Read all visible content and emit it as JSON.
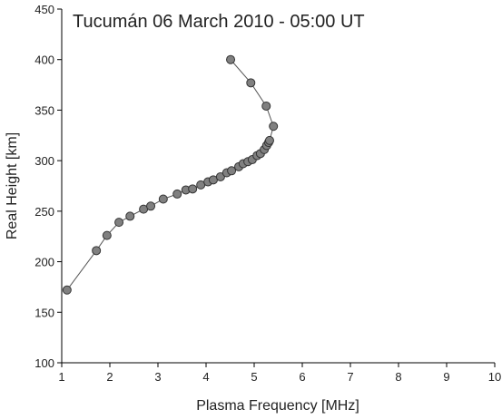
{
  "chart_data": {
    "type": "line",
    "title": "Tucumán 06 March 2010 - 05:00 UT",
    "x_label": "Plasma Frequency [MHz]",
    "y_label": "Real Height [km]",
    "x": [
      1.11,
      1.72,
      1.94,
      2.19,
      2.42,
      2.7,
      2.85,
      3.11,
      3.4,
      3.58,
      3.72,
      3.89,
      4.04,
      4.15,
      4.3,
      4.43,
      4.53,
      4.68,
      4.77,
      4.87,
      4.96,
      5.06,
      5.13,
      5.21,
      5.26,
      5.3,
      5.32,
      5.4,
      5.25,
      4.93,
      4.51
    ],
    "values": [
      172,
      211,
      226,
      239,
      245,
      252,
      255,
      262,
      267,
      271,
      272,
      276,
      279,
      281,
      284,
      288,
      290,
      294,
      297,
      299,
      301,
      305,
      307,
      311,
      315,
      318,
      320,
      334,
      354,
      377,
      400
    ],
    "color": "#808080",
    "line_color": "#555555",
    "markers": true,
    "xlim": [
      1,
      10
    ],
    "xticks": [
      1,
      2,
      3,
      4,
      5,
      6,
      7,
      8,
      9,
      10
    ],
    "ylim": [
      100,
      450
    ],
    "yticks": [
      100,
      150,
      200,
      250,
      300,
      350,
      400,
      450
    ]
  }
}
